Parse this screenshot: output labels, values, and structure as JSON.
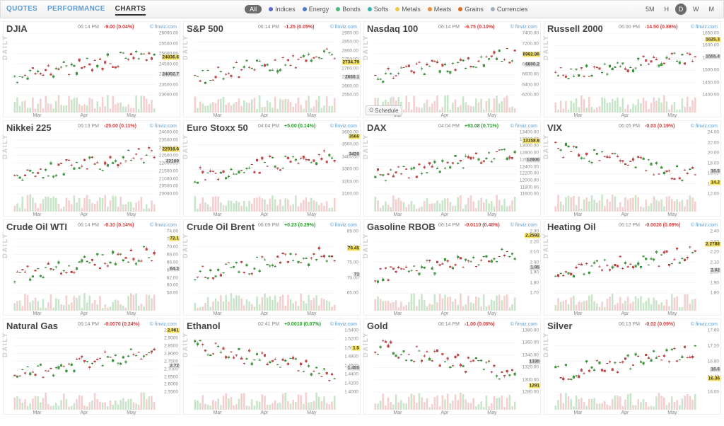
{
  "topbar": {
    "tabs": [
      {
        "label": "QUOTES",
        "active": false
      },
      {
        "label": "PERFORMANCE",
        "active": false
      },
      {
        "label": "CHARTS",
        "active": true
      }
    ],
    "category_all_label": "All",
    "categories": [
      {
        "label": "Indices",
        "color": "#5a67d8"
      },
      {
        "label": "Energy",
        "color": "#4a7cc9"
      },
      {
        "label": "Bonds",
        "color": "#48bb78"
      },
      {
        "label": "Softs",
        "color": "#38b2ac"
      },
      {
        "label": "Metals",
        "color": "#ecc94b"
      },
      {
        "label": "Meats",
        "color": "#ed8936"
      },
      {
        "label": "Grains",
        "color": "#dd6b20"
      },
      {
        "label": "Currencies",
        "color": "#a0aec0"
      }
    ],
    "timeframes": [
      {
        "label": "5M",
        "active": false
      },
      {
        "label": "H",
        "active": false
      },
      {
        "label": "D",
        "active": true
      },
      {
        "label": "W",
        "active": false
      },
      {
        "label": "M",
        "active": false
      }
    ]
  },
  "link_label": "© finviz.com",
  "daily_label": "DAILY",
  "schedule_label": "Schedule",
  "x_months": [
    "Mar",
    "Apr",
    "May"
  ],
  "style": {
    "up_body": "#3aa23a",
    "up_border": "#2a7a2a",
    "up_vol": "#c9e5c9",
    "dn_body": "#d64545",
    "dn_border": "#a03030",
    "dn_vol": "#f3cfcf",
    "highlight_bg": "#f7e463",
    "grid": "#eeeeee",
    "pos_text": "#2a9d2a",
    "neg_text": "#d63a3a"
  },
  "panels": [
    {
      "title": "DJIA",
      "time": "06:14 PM",
      "chg": "-9.00 (0.04%)",
      "dir": "neg",
      "ymin": 23000,
      "ymax": 26000,
      "ystep": 500,
      "price_hl": 24836.6,
      "price_lo": 24002.7,
      "seed": 11,
      "has_schedule": false
    },
    {
      "title": "S&P 500",
      "time": "06:14 PM",
      "chg": "-1.25 (0.05%)",
      "dir": "neg",
      "ymin": 2550,
      "ymax": 2900,
      "ystep": 50,
      "price_hl": 2734.79,
      "price_lo": 2650.1,
      "seed": 22,
      "has_schedule": false
    },
    {
      "title": "Nasdaq 100",
      "time": "06:14 PM",
      "chg": "-6.75 (0.10%)",
      "dir": "neg",
      "ymin": 6200,
      "ymax": 7400,
      "ystep": 200,
      "price_hl": 6982.86,
      "price_lo": 6800.2,
      "seed": 33,
      "has_schedule": true
    },
    {
      "title": "Russell 2000",
      "time": "06:00 PM",
      "chg": "-14.50 (0.88%)",
      "dir": "neg",
      "ymin": 1400,
      "ymax": 1650,
      "ystep": 50,
      "price_hl": 1625.3,
      "price_lo": 1555.4,
      "seed": 44
    },
    {
      "title": "Nikkei 225",
      "time": "06:13 PM",
      "chg": "-25.00 (0.11%)",
      "dir": "neg",
      "ymin": 20000,
      "ymax": 24000,
      "ystep": 500,
      "price_hl": 22918.6,
      "price_lo": 22100,
      "seed": 55
    },
    {
      "title": "Euro Stoxx 50",
      "time": "04:04 PM",
      "chg": "+5.00 (0.14%)",
      "dir": "pos",
      "ymin": 3100,
      "ymax": 3600,
      "ystep": 100,
      "price_hl": 3566.0,
      "price_lo": 3420,
      "seed": 66
    },
    {
      "title": "DAX",
      "time": "04:04 PM",
      "chg": "+93.08 (0.71%)",
      "dir": "pos",
      "ymin": 11600,
      "ymax": 13400,
      "ystep": 200,
      "price_hl": 13158.8,
      "price_lo": 12600,
      "seed": 77
    },
    {
      "title": "VIX",
      "time": "06:05 PM",
      "chg": "-0.03 (0.19%)",
      "dir": "neg",
      "ymin": 12,
      "ymax": 24,
      "ystep": 2,
      "price_hl": 14.2,
      "price_lo": 16.5,
      "seed": 88,
      "trend_down": true
    },
    {
      "title": "Crude Oil WTI",
      "time": "06:14 PM",
      "chg": "-0.10 (0.14%)",
      "dir": "neg",
      "ymin": 58,
      "ymax": 74,
      "ystep": 2,
      "price_hl": 72.1,
      "price_lo": 64.3,
      "seed": 19
    },
    {
      "title": "Crude Oil Brent",
      "time": "06:09 PM",
      "chg": "+0.23 (0.29%)",
      "dir": "pos",
      "ymin": 65,
      "ymax": 85,
      "ystep": 5,
      "price_hl": 79.45,
      "price_lo": 71.0,
      "seed": 29
    },
    {
      "title": "Gasoline RBOB",
      "time": "06:14 PM",
      "chg": "-0.0110 (0.48%)",
      "dir": "neg",
      "ymin": 1.7,
      "ymax": 2.3,
      "ystep": 0.1,
      "price_hl": 2.2592,
      "price_lo": 1.95,
      "seed": 39
    },
    {
      "title": "Heating Oil",
      "time": "06:12 PM",
      "chg": "-0.0020 (0.09%)",
      "dir": "neg",
      "ymin": 1.8,
      "ymax": 2.4,
      "ystep": 0.1,
      "price_hl": 2.2788,
      "price_lo": 2.02,
      "seed": 49
    },
    {
      "title": "Natural Gas",
      "time": "06:14 PM",
      "chg": "-0.0070 (0.24%)",
      "dir": "neg",
      "ymin": 2.55,
      "ymax": 2.95,
      "ystep": 0.05,
      "price_hl": 2.961,
      "price_lo": 2.72,
      "seed": 59
    },
    {
      "title": "Ethanol",
      "time": "02:41 PM",
      "chg": "+0.0010 (0.07%)",
      "dir": "pos",
      "ymin": 1.4,
      "ymax": 1.54,
      "ystep": 0.02,
      "price_hl": 1.5,
      "price_lo": 1.455,
      "seed": 69,
      "trend_down": true
    },
    {
      "title": "Gold",
      "time": "06:14 PM",
      "chg": "-1.00 (0.08%)",
      "dir": "neg",
      "ymin": 1280,
      "ymax": 1380,
      "ystep": 20,
      "price_hl": 1291.0,
      "price_lo": 1330,
      "seed": 79,
      "trend_down": true
    },
    {
      "title": "Silver",
      "time": "06:13 PM",
      "chg": "-0.02 (0.09%)",
      "dir": "neg",
      "ymin": 16,
      "ymax": 17.6,
      "ystep": 0.4,
      "price_hl": 16.36,
      "price_lo": 16.6,
      "seed": 89
    }
  ]
}
